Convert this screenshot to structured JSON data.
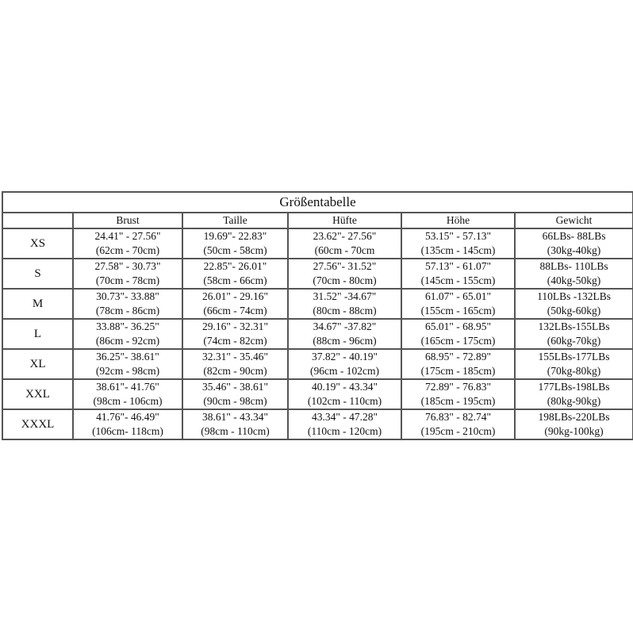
{
  "title": "Größentabelle",
  "columns": [
    "",
    "Brust",
    "Taille",
    "Hüfte",
    "Höhe",
    "Gewicht"
  ],
  "rows": [
    {
      "size": "XS",
      "cells": [
        [
          "24.41\" - 27.56\"",
          "(62cm - 70cm)"
        ],
        [
          "19.69\"- 22.83\"",
          "(50cm - 58cm)"
        ],
        [
          "23.62\"- 27.56\"",
          "(60cm - 70cm"
        ],
        [
          "53.15\" - 57.13\"",
          "(135cm - 145cm)"
        ],
        [
          "66LBs- 88LBs",
          "(30kg-40kg)"
        ]
      ]
    },
    {
      "size": "S",
      "cells": [
        [
          "27.58\" - 30.73\"",
          "(70cm - 78cm)"
        ],
        [
          "22.85\"- 26.01\"",
          "(58cm - 66cm)"
        ],
        [
          "27.56\"- 31.52\"",
          "(70cm - 80cm)"
        ],
        [
          "57.13\" - 61.07\"",
          "(145cm - 155cm)"
        ],
        [
          "88LBs- 110LBs",
          "(40kg-50kg)"
        ]
      ]
    },
    {
      "size": "M",
      "cells": [
        [
          "30.73\"- 33.88\"",
          "(78cm - 86cm)"
        ],
        [
          "26.01\" - 29.16\"",
          "(66cm - 74cm)"
        ],
        [
          "31.52\" -34.67\"",
          "(80cm - 88cm)"
        ],
        [
          "61.07\" - 65.01\"",
          "(155cm - 165cm)"
        ],
        [
          "110LBs -132LBs",
          "(50kg-60kg)"
        ]
      ]
    },
    {
      "size": "L",
      "cells": [
        [
          "33.88\"- 36.25\"",
          "(86cm - 92cm)"
        ],
        [
          "29.16\" - 32.31\"",
          "(74cm - 82cm)"
        ],
        [
          "34.67\" -37.82\"",
          "(88cm - 96cm)"
        ],
        [
          "65.01\" - 68.95\"",
          "(165cm - 175cm)"
        ],
        [
          "132LBs-155LBs",
          "(60kg-70kg)"
        ]
      ]
    },
    {
      "size": "XL",
      "cells": [
        [
          "36.25\"- 38.61\"",
          "(92cm - 98cm)"
        ],
        [
          "32.31\" - 35.46\"",
          "(82cm - 90cm)"
        ],
        [
          "37.82\" - 40.19\"",
          "(96cm - 102cm)"
        ],
        [
          "68.95\" - 72.89\"",
          "(175cm - 185cm)"
        ],
        [
          "155LBs-177LBs",
          "(70kg-80kg)"
        ]
      ]
    },
    {
      "size": "XXL",
      "cells": [
        [
          "38.61\"- 41.76\"",
          "(98cm - 106cm)"
        ],
        [
          "35.46\" - 38.61\"",
          "(90cm - 98cm)"
        ],
        [
          "40.19\" - 43.34\"",
          "(102cm - 110cm)"
        ],
        [
          "72.89\" - 76.83\"",
          "(185cm - 195cm)"
        ],
        [
          "177LBs-198LBs",
          "(80kg-90kg)"
        ]
      ]
    },
    {
      "size": "XXXL",
      "cells": [
        [
          "41.76\"- 46.49\"",
          "(106cm- 118cm)"
        ],
        [
          "38.61\" - 43.34\"",
          "(98cm - 110cm)"
        ],
        [
          "43.34\" - 47.28\"",
          "(110cm - 120cm)"
        ],
        [
          "76.83\" - 82.74\"",
          "(195cm - 210cm)"
        ],
        [
          "198LBs-220LBs",
          "(90kg-100kg)"
        ]
      ]
    }
  ]
}
